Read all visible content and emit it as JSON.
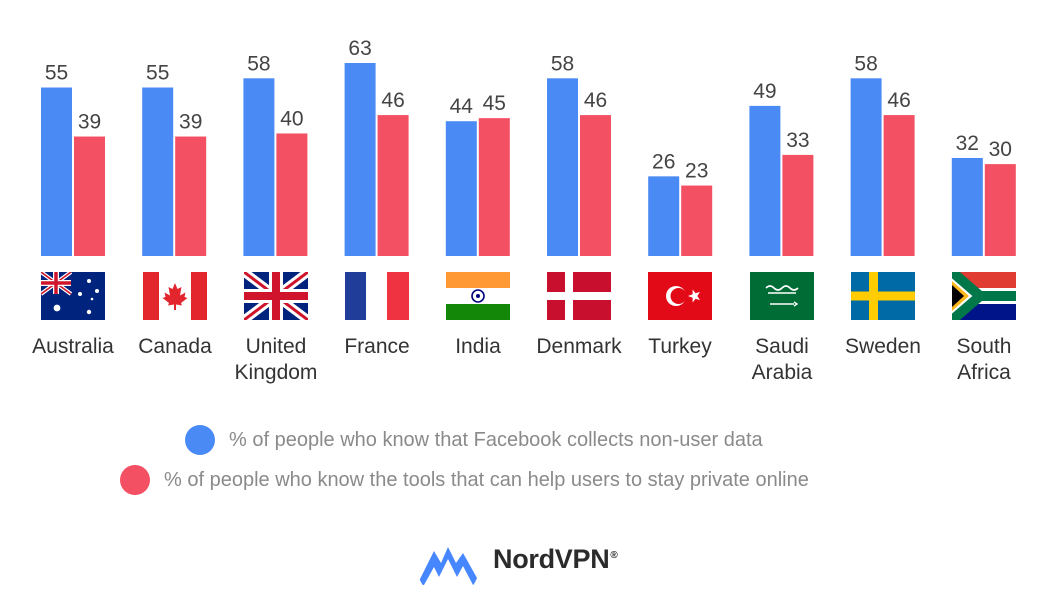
{
  "chart_data": {
    "type": "bar",
    "categories": [
      "Australia",
      "Canada",
      "United\nKingdom",
      "France",
      "India",
      "Denmark",
      "Turkey",
      "Saudi\nArabia",
      "Sweden",
      "South\nAfrica"
    ],
    "series": [
      {
        "name": "% of people who know that Facebook collects non-user data",
        "color": "#4a8af4",
        "values": [
          55,
          55,
          58,
          63,
          44,
          58,
          26,
          49,
          58,
          32
        ]
      },
      {
        "name": "% of people who know the tools that can help users to stay private online",
        "color": "#f45064",
        "values": [
          39,
          39,
          40,
          46,
          45,
          46,
          23,
          33,
          46,
          30
        ]
      }
    ],
    "ylim": [
      0,
      63
    ],
    "grid": false,
    "data_labels": true,
    "legend_position": "bottom"
  },
  "countries": [
    {
      "label": "Australia",
      "flag": "australia-flag"
    },
    {
      "label": "Canada",
      "flag": "canada-flag"
    },
    {
      "label": "United\nKingdom",
      "flag": "uk-flag"
    },
    {
      "label": "France",
      "flag": "france-flag"
    },
    {
      "label": "India",
      "flag": "india-flag"
    },
    {
      "label": "Denmark",
      "flag": "denmark-flag"
    },
    {
      "label": "Turkey",
      "flag": "turkey-flag"
    },
    {
      "label": "Saudi\nArabia",
      "flag": "saudi-arabia-flag"
    },
    {
      "label": "Sweden",
      "flag": "sweden-flag"
    },
    {
      "label": "South\nAfrica",
      "flag": "south-africa-flag"
    }
  ],
  "legend": {
    "items": [
      {
        "label": "% of people who know that Facebook collects non-user data",
        "color": "#4a8af4"
      },
      {
        "label": "% of people who know the tools that can help users to stay private online",
        "color": "#f45064"
      }
    ]
  },
  "brand": {
    "name": "NordVPN",
    "mark": "®",
    "icon": "nordvpn-mountain-icon",
    "color": "#4687ff"
  }
}
